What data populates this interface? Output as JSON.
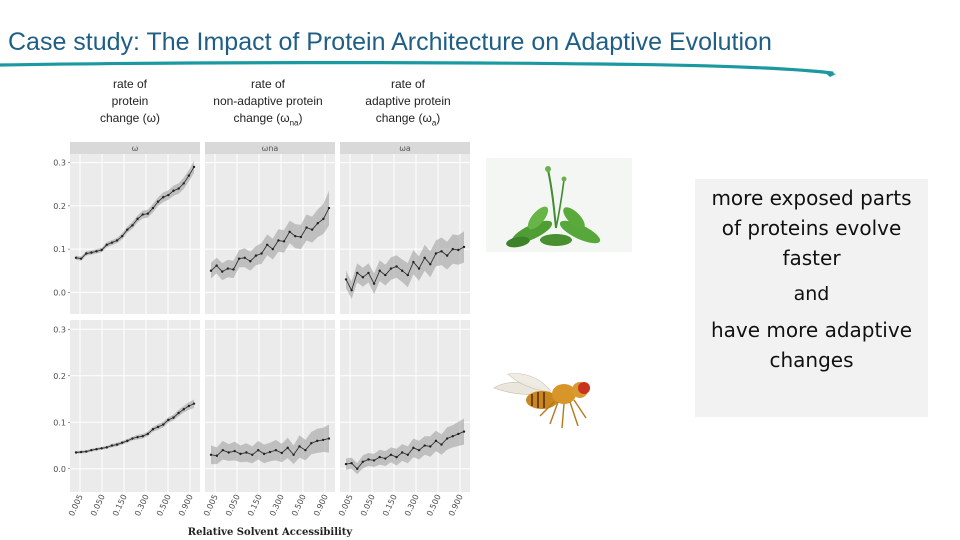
{
  "slide": {
    "title": "Case study: The Impact of Protein Architecture on Adaptive Evolution",
    "accent_color": "#1a9aa0",
    "title_color": "#1f5f86"
  },
  "column_headers": [
    {
      "lines": [
        "rate of",
        "protein"
      ],
      "last_prefix": "change (",
      "symbol": "ω",
      "sub": "",
      "last_suffix": ")"
    },
    {
      "lines": [
        "rate of",
        "non-adaptive protein"
      ],
      "last_prefix": "change (",
      "symbol": "ω",
      "sub": "na",
      "last_suffix": ")"
    },
    {
      "lines": [
        "rate of",
        "adaptive protein"
      ],
      "last_prefix": "change (",
      "symbol": "ω",
      "sub": "a",
      "last_suffix": ")"
    }
  ],
  "callout": {
    "line1": "more exposed parts",
    "line2": "of proteins evolve",
    "line3": "faster",
    "line4": "and",
    "line5": "have more adaptive",
    "line6": "changes"
  },
  "images": [
    {
      "icon": "arabidopsis-plant-photo"
    },
    {
      "icon": "fruit-fly-photo"
    }
  ],
  "chart_data": {
    "type": "line",
    "layout": "facet-grid 2 rows x 3 columns",
    "xlabel": "Relative Solvent Accessibility",
    "x_tick_labels": [
      "0.005",
      "0.050",
      "0.150",
      "0.300",
      "0.500",
      "0.900"
    ],
    "ylim": [
      -0.05,
      0.32
    ],
    "y_ticks": [
      0.0,
      0.1,
      0.2,
      0.3
    ],
    "y_tick_labels": [
      "0.0",
      "0.1",
      "0.2",
      "0.3"
    ],
    "grid": true,
    "facet_labels": [
      "ω",
      "ωna",
      "ωa"
    ],
    "panels": [
      {
        "row": 0,
        "col": 0,
        "values": [
          0.08,
          0.078,
          0.09,
          0.092,
          0.095,
          0.098,
          0.11,
          0.115,
          0.12,
          0.13,
          0.145,
          0.155,
          0.17,
          0.18,
          0.182,
          0.195,
          0.21,
          0.22,
          0.225,
          0.235,
          0.24,
          0.252,
          0.27,
          0.29
        ],
        "band": [
          0.005,
          0.005,
          0.005,
          0.005,
          0.005,
          0.005,
          0.006,
          0.006,
          0.006,
          0.007,
          0.007,
          0.008,
          0.008,
          0.009,
          0.009,
          0.01,
          0.01,
          0.011,
          0.011,
          0.012,
          0.012,
          0.013,
          0.013,
          0.014
        ]
      },
      {
        "row": 0,
        "col": 1,
        "values": [
          0.05,
          0.062,
          0.048,
          0.055,
          0.053,
          0.078,
          0.08,
          0.072,
          0.085,
          0.09,
          0.11,
          0.1,
          0.12,
          0.118,
          0.14,
          0.13,
          0.128,
          0.15,
          0.145,
          0.16,
          0.17,
          0.195
        ],
        "band": [
          0.018,
          0.018,
          0.02,
          0.02,
          0.02,
          0.02,
          0.022,
          0.022,
          0.022,
          0.024,
          0.024,
          0.024,
          0.026,
          0.026,
          0.026,
          0.028,
          0.028,
          0.03,
          0.03,
          0.032,
          0.035,
          0.04
        ]
      },
      {
        "row": 0,
        "col": 2,
        "values": [
          0.03,
          0.005,
          0.045,
          0.035,
          0.045,
          0.02,
          0.05,
          0.04,
          0.055,
          0.06,
          0.05,
          0.04,
          0.07,
          0.055,
          0.08,
          0.065,
          0.09,
          0.095,
          0.085,
          0.1,
          0.098,
          0.105
        ],
        "band": [
          0.02,
          0.02,
          0.022,
          0.022,
          0.022,
          0.024,
          0.024,
          0.024,
          0.026,
          0.026,
          0.026,
          0.028,
          0.028,
          0.028,
          0.03,
          0.03,
          0.03,
          0.032,
          0.032,
          0.034,
          0.034,
          0.036
        ]
      },
      {
        "row": 1,
        "col": 0,
        "values": [
          0.035,
          0.036,
          0.037,
          0.04,
          0.042,
          0.044,
          0.046,
          0.05,
          0.052,
          0.056,
          0.06,
          0.065,
          0.068,
          0.07,
          0.075,
          0.085,
          0.09,
          0.095,
          0.105,
          0.11,
          0.12,
          0.128,
          0.135,
          0.14
        ],
        "band": [
          0.003,
          0.003,
          0.003,
          0.003,
          0.003,
          0.003,
          0.003,
          0.004,
          0.004,
          0.004,
          0.004,
          0.004,
          0.005,
          0.005,
          0.005,
          0.005,
          0.006,
          0.006,
          0.006,
          0.006,
          0.007,
          0.007,
          0.008,
          0.009
        ]
      },
      {
        "row": 1,
        "col": 1,
        "values": [
          0.03,
          0.028,
          0.04,
          0.035,
          0.038,
          0.032,
          0.035,
          0.03,
          0.04,
          0.032,
          0.036,
          0.04,
          0.034,
          0.045,
          0.03,
          0.048,
          0.04,
          0.055,
          0.06,
          0.062,
          0.065
        ],
        "band": [
          0.02,
          0.018,
          0.02,
          0.018,
          0.02,
          0.018,
          0.02,
          0.018,
          0.02,
          0.02,
          0.02,
          0.022,
          0.02,
          0.022,
          0.02,
          0.024,
          0.022,
          0.024,
          0.026,
          0.026,
          0.03
        ]
      },
      {
        "row": 1,
        "col": 2,
        "values": [
          0.01,
          0.012,
          0.0,
          0.015,
          0.02,
          0.018,
          0.025,
          0.022,
          0.03,
          0.025,
          0.035,
          0.03,
          0.045,
          0.04,
          0.05,
          0.048,
          0.06,
          0.052,
          0.065,
          0.07,
          0.075,
          0.08
        ],
        "band": [
          0.012,
          0.012,
          0.012,
          0.014,
          0.014,
          0.014,
          0.016,
          0.016,
          0.016,
          0.018,
          0.018,
          0.018,
          0.02,
          0.02,
          0.02,
          0.022,
          0.022,
          0.022,
          0.024,
          0.024,
          0.026,
          0.028
        ]
      }
    ]
  }
}
